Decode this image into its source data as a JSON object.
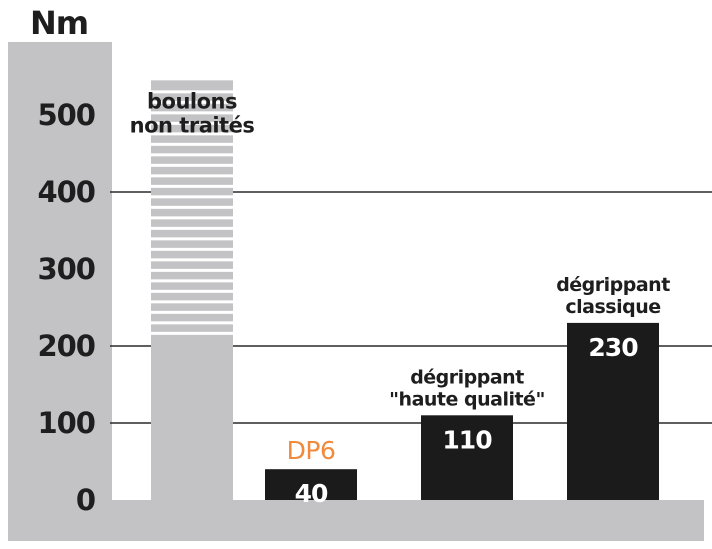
{
  "chart_data": {
    "type": "bar",
    "ylabel": "Nm",
    "ylim": [
      0,
      550
    ],
    "yticks": [
      0,
      100,
      200,
      300,
      400,
      500
    ],
    "gridlines": [
      100,
      200,
      400
    ],
    "bars": [
      {
        "id": "untreated",
        "label_lines": [
          "boulons",
          "non traités"
        ],
        "value": 545,
        "value_label": "",
        "style": "striped"
      },
      {
        "id": "dp6",
        "label_lines": [
          "DP6"
        ],
        "value": 40,
        "value_label": "40",
        "style": "solid",
        "label_color": "#f08a3c"
      },
      {
        "id": "high-quality",
        "label_lines": [
          "dégrippant",
          "\"haute qualité\""
        ],
        "value": 110,
        "value_label": "110",
        "style": "solid"
      },
      {
        "id": "classic",
        "label_lines": [
          "dégrippant",
          "classique"
        ],
        "value": 230,
        "value_label": "230",
        "style": "solid"
      }
    ]
  },
  "colors": {
    "panel": "#c3c2c4",
    "bar_solid": "#1c1b1c",
    "text_dark": "#1e1e1e",
    "stripe": "#ffffff",
    "gridline": "#2a2a2a"
  }
}
